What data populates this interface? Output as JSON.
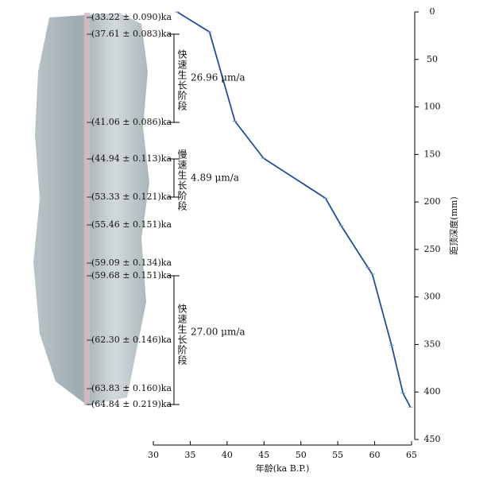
{
  "chart_data": {
    "type": "line",
    "x_label": "年龄(ka B.P.)",
    "y_label": "距顶深度(mm)",
    "x": [
      33.22,
      37.61,
      41.06,
      44.94,
      53.33,
      55.46,
      59.09,
      59.68,
      62.3,
      63.83,
      64.84
    ],
    "series": [
      {
        "color": "#1f4e9c",
        "values": [
          0,
          21,
          115,
          154,
          196,
          225,
          269,
          276,
          351,
          401,
          416
        ]
      }
    ],
    "xlim": [
      30,
      65
    ],
    "xticks": [
      30,
      35,
      40,
      45,
      50,
      55,
      60,
      65
    ],
    "ylim": [
      0,
      450
    ],
    "yticks": [
      0,
      50,
      100,
      150,
      200,
      250,
      300,
      350,
      400,
      450
    ],
    "y_inverted": true,
    "sample_labels": [
      "(33.22 ± 0.090)ka",
      "(37.61 ± 0.083)ka",
      "(41.06 ± 0.086)ka",
      "(44.94 ± 0.113)ka",
      "(53.33 ± 0.121)ka",
      "(55.46 ± 0.151)ka",
      "(59.09 ± 0.134)ka",
      "(59.68 ± 0.151)ka",
      "(62.30 ± 0.146)ka",
      "(63.83 ± 0.160)ka",
      "(64.84 ± 0.219)ka"
    ],
    "phases": [
      {
        "name": "快速生长阶段",
        "rate": "26.96 μm/a"
      },
      {
        "name": "慢速生长阶段",
        "rate": "4.89 μm/a"
      },
      {
        "name": "快速生长阶段",
        "rate": "27.00 μm/a"
      }
    ]
  }
}
